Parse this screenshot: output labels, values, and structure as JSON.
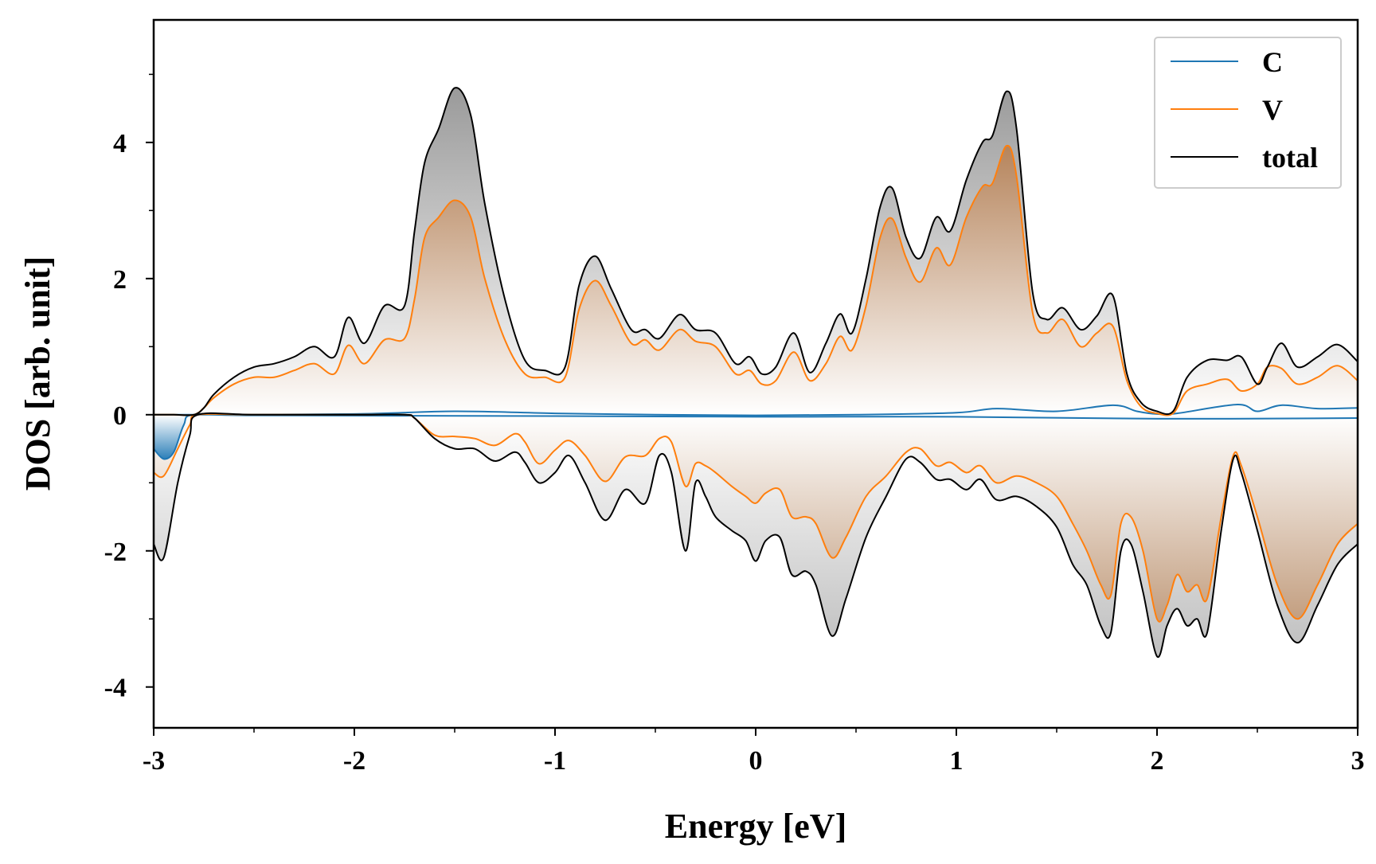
{
  "chart_data": {
    "type": "area",
    "xlabel": "Energy [eV]",
    "ylabel": "DOS [arb. unit]",
    "xlim": [
      -3,
      3
    ],
    "ylim": [
      -4.6,
      5.8
    ],
    "xticks": [
      -3,
      -2,
      -1,
      0,
      1,
      2,
      3
    ],
    "xtick_labels": [
      "-3",
      "-2",
      "-1",
      "0",
      "1",
      "2",
      "3"
    ],
    "yticks": [
      -4,
      -2,
      0,
      2,
      4
    ],
    "ytick_labels": [
      "-4",
      "-2",
      "0",
      "2",
      "4"
    ],
    "grid": false,
    "legend_position": "top-right",
    "colors": {
      "C": "#1f77b4",
      "V": "#ff7f0e",
      "total": "#000000",
      "fill_total": "#9a9a9a",
      "fill_V": "#b5835a"
    },
    "series": [
      {
        "name": "C",
        "spin_up": {
          "x": [
            -3.0,
            -2.8,
            -2.0,
            -1.5,
            -1.0,
            -0.5,
            0.0,
            0.5,
            1.0,
            1.2,
            1.5,
            1.78,
            1.9,
            2.0,
            2.1,
            2.4,
            2.5,
            2.62,
            2.8,
            3.0
          ],
          "y": [
            0.0,
            0.0,
            0.01,
            0.05,
            0.02,
            0.0,
            -0.01,
            0.0,
            0.03,
            0.09,
            0.05,
            0.14,
            0.05,
            0.01,
            0.02,
            0.15,
            0.05,
            0.14,
            0.09,
            0.1
          ]
        },
        "spin_down": {
          "x": [
            -3.0,
            -2.95,
            -2.9,
            -2.85,
            -2.8,
            -2.5,
            -1.0,
            0.0,
            1.0,
            2.0,
            3.0
          ],
          "y": [
            -0.5,
            -0.65,
            -0.55,
            -0.15,
            0.0,
            -0.01,
            -0.02,
            -0.03,
            -0.03,
            -0.06,
            -0.05
          ]
        }
      },
      {
        "name": "V",
        "spin_up": {
          "x": [
            -3.0,
            -2.9,
            -2.8,
            -2.75,
            -2.7,
            -2.6,
            -2.5,
            -2.4,
            -2.3,
            -2.2,
            -2.1,
            -2.03,
            -1.95,
            -1.85,
            -1.75,
            -1.7,
            -1.65,
            -1.58,
            -1.5,
            -1.42,
            -1.35,
            -1.25,
            -1.15,
            -1.05,
            -0.95,
            -0.88,
            -0.8,
            -0.72,
            -0.62,
            -0.55,
            -0.48,
            -0.38,
            -0.3,
            -0.2,
            -0.1,
            -0.03,
            0.03,
            0.1,
            0.19,
            0.27,
            0.35,
            0.42,
            0.48,
            0.55,
            0.62,
            0.68,
            0.75,
            0.82,
            0.9,
            0.97,
            1.05,
            1.13,
            1.18,
            1.25,
            1.3,
            1.38,
            1.45,
            1.53,
            1.62,
            1.7,
            1.78,
            1.85,
            1.92,
            2.0,
            2.08,
            2.15,
            2.25,
            2.35,
            2.42,
            2.5,
            2.55,
            2.62,
            2.7,
            2.8,
            2.9,
            3.0
          ],
          "y": [
            0.0,
            0.0,
            0.0,
            0.1,
            0.25,
            0.45,
            0.55,
            0.55,
            0.65,
            0.75,
            0.6,
            1.02,
            0.75,
            1.1,
            1.12,
            1.7,
            2.6,
            2.9,
            3.15,
            2.9,
            2.0,
            1.1,
            0.6,
            0.55,
            0.55,
            1.55,
            1.97,
            1.6,
            1.05,
            1.1,
            0.95,
            1.25,
            1.08,
            1.0,
            0.6,
            0.65,
            0.45,
            0.5,
            0.92,
            0.5,
            0.75,
            1.15,
            0.95,
            1.6,
            2.6,
            2.88,
            2.3,
            1.95,
            2.45,
            2.2,
            2.9,
            3.35,
            3.4,
            3.95,
            3.5,
            1.5,
            1.2,
            1.4,
            1.0,
            1.2,
            1.3,
            0.5,
            0.12,
            0.02,
            0.02,
            0.35,
            0.45,
            0.52,
            0.35,
            0.45,
            0.7,
            0.68,
            0.45,
            0.55,
            0.72,
            0.5
          ]
        },
        "spin_down": {
          "x": [
            -3.0,
            -2.95,
            -2.88,
            -2.82,
            -2.78,
            -2.5,
            -2.0,
            -1.75,
            -1.7,
            -1.6,
            -1.5,
            -1.4,
            -1.3,
            -1.2,
            -1.15,
            -1.08,
            -1.0,
            -0.93,
            -0.85,
            -0.75,
            -0.65,
            -0.55,
            -0.48,
            -0.42,
            -0.35,
            -0.3,
            -0.25,
            -0.2,
            -0.12,
            -0.05,
            0.0,
            0.05,
            0.12,
            0.18,
            0.25,
            0.3,
            0.38,
            0.45,
            0.55,
            0.65,
            0.75,
            0.82,
            0.9,
            0.97,
            1.05,
            1.12,
            1.2,
            1.3,
            1.4,
            1.5,
            1.58,
            1.65,
            1.72,
            1.77,
            1.82,
            1.87,
            1.93,
            2.0,
            2.05,
            2.1,
            2.15,
            2.2,
            2.25,
            2.32,
            2.38,
            2.42,
            2.5,
            2.6,
            2.7,
            2.8,
            2.9,
            3.0
          ],
          "y": [
            -0.85,
            -0.9,
            -0.5,
            -0.15,
            0.0,
            0.0,
            0.0,
            0.0,
            -0.05,
            -0.3,
            -0.32,
            -0.35,
            -0.45,
            -0.28,
            -0.4,
            -0.72,
            -0.52,
            -0.38,
            -0.6,
            -0.98,
            -0.62,
            -0.6,
            -0.35,
            -0.4,
            -1.05,
            -0.72,
            -0.75,
            -0.85,
            -1.05,
            -1.2,
            -1.3,
            -1.15,
            -1.1,
            -1.5,
            -1.5,
            -1.6,
            -2.1,
            -1.8,
            -1.2,
            -0.9,
            -0.55,
            -0.5,
            -0.75,
            -0.7,
            -0.85,
            -0.75,
            -1.0,
            -0.9,
            -1.0,
            -1.2,
            -1.6,
            -2.0,
            -2.5,
            -2.65,
            -1.6,
            -1.5,
            -2.0,
            -3.0,
            -2.8,
            -2.35,
            -2.6,
            -2.5,
            -2.7,
            -1.5,
            -0.6,
            -0.75,
            -1.5,
            -2.5,
            -3.0,
            -2.5,
            -1.9,
            -1.6
          ]
        }
      },
      {
        "name": "total",
        "spin_up": {
          "x": [
            -3.0,
            -2.9,
            -2.8,
            -2.75,
            -2.7,
            -2.6,
            -2.5,
            -2.4,
            -2.3,
            -2.2,
            -2.1,
            -2.03,
            -1.95,
            -1.85,
            -1.75,
            -1.7,
            -1.65,
            -1.58,
            -1.5,
            -1.42,
            -1.35,
            -1.25,
            -1.15,
            -1.05,
            -0.95,
            -0.88,
            -0.8,
            -0.72,
            -0.62,
            -0.55,
            -0.48,
            -0.38,
            -0.3,
            -0.2,
            -0.1,
            -0.03,
            0.03,
            0.1,
            0.19,
            0.27,
            0.35,
            0.42,
            0.48,
            0.55,
            0.62,
            0.68,
            0.75,
            0.82,
            0.9,
            0.97,
            1.05,
            1.13,
            1.18,
            1.25,
            1.3,
            1.38,
            1.45,
            1.53,
            1.62,
            1.7,
            1.78,
            1.85,
            1.92,
            2.0,
            2.08,
            2.15,
            2.25,
            2.35,
            2.42,
            2.5,
            2.55,
            2.62,
            2.7,
            2.8,
            2.9,
            3.0
          ],
          "y": [
            0.0,
            0.0,
            0.0,
            0.1,
            0.3,
            0.55,
            0.7,
            0.75,
            0.85,
            1.0,
            0.85,
            1.43,
            1.05,
            1.6,
            1.6,
            2.7,
            3.7,
            4.2,
            4.8,
            4.4,
            3.1,
            1.7,
            0.8,
            0.65,
            0.7,
            1.9,
            2.33,
            1.85,
            1.25,
            1.25,
            1.12,
            1.47,
            1.25,
            1.2,
            0.75,
            0.85,
            0.6,
            0.7,
            1.2,
            0.62,
            1.05,
            1.48,
            1.2,
            2.0,
            3.05,
            3.33,
            2.6,
            2.3,
            2.9,
            2.7,
            3.45,
            4.0,
            4.1,
            4.75,
            4.2,
            1.8,
            1.4,
            1.57,
            1.25,
            1.45,
            1.75,
            0.6,
            0.18,
            0.05,
            0.05,
            0.55,
            0.8,
            0.8,
            0.85,
            0.45,
            0.7,
            1.05,
            0.7,
            0.85,
            1.03,
            0.78
          ]
        },
        "spin_down": {
          "x": [
            -3.0,
            -2.95,
            -2.88,
            -2.82,
            -2.78,
            -2.5,
            -2.0,
            -1.75,
            -1.7,
            -1.6,
            -1.5,
            -1.4,
            -1.3,
            -1.2,
            -1.15,
            -1.08,
            -1.0,
            -0.93,
            -0.85,
            -0.75,
            -0.65,
            -0.55,
            -0.48,
            -0.42,
            -0.35,
            -0.3,
            -0.25,
            -0.2,
            -0.12,
            -0.05,
            0.0,
            0.05,
            0.12,
            0.18,
            0.25,
            0.3,
            0.38,
            0.45,
            0.55,
            0.65,
            0.75,
            0.82,
            0.9,
            0.97,
            1.05,
            1.12,
            1.2,
            1.3,
            1.4,
            1.5,
            1.58,
            1.65,
            1.72,
            1.77,
            1.82,
            1.87,
            1.93,
            2.0,
            2.05,
            2.1,
            2.15,
            2.2,
            2.25,
            2.32,
            2.38,
            2.42,
            2.5,
            2.6,
            2.7,
            2.8,
            2.9,
            3.0
          ],
          "y": [
            -1.9,
            -2.1,
            -1.0,
            -0.3,
            0.0,
            0.0,
            0.0,
            0.0,
            -0.05,
            -0.35,
            -0.5,
            -0.5,
            -0.68,
            -0.55,
            -0.7,
            -1.0,
            -0.85,
            -0.6,
            -1.0,
            -1.55,
            -1.1,
            -1.3,
            -0.6,
            -0.85,
            -2.0,
            -1.0,
            -1.2,
            -1.5,
            -1.7,
            -1.85,
            -2.15,
            -1.85,
            -1.8,
            -2.35,
            -2.3,
            -2.5,
            -3.25,
            -2.7,
            -1.8,
            -1.2,
            -0.65,
            -0.7,
            -0.95,
            -0.95,
            -1.1,
            -0.95,
            -1.25,
            -1.2,
            -1.35,
            -1.65,
            -2.2,
            -2.5,
            -3.1,
            -3.2,
            -2.0,
            -1.9,
            -2.6,
            -3.55,
            -3.1,
            -2.85,
            -3.1,
            -3.0,
            -3.2,
            -1.7,
            -0.65,
            -0.85,
            -1.7,
            -2.8,
            -3.35,
            -2.8,
            -2.2,
            -1.9
          ]
        }
      }
    ]
  }
}
